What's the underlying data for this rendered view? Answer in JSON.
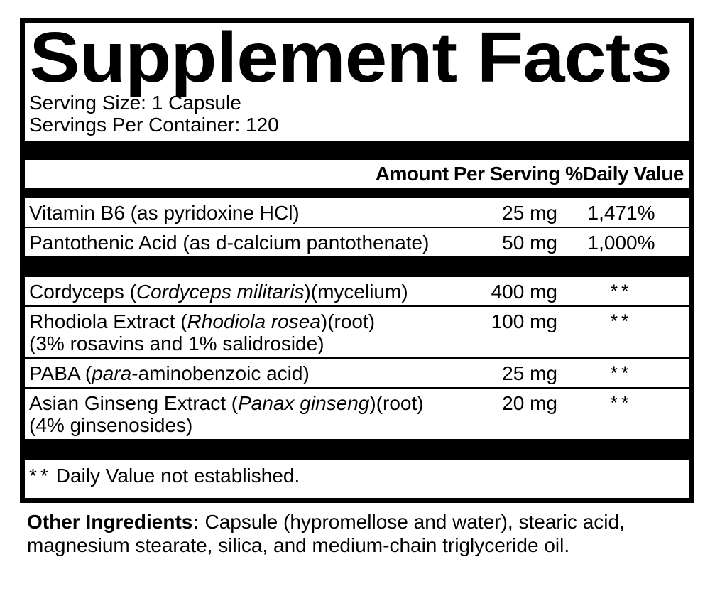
{
  "colors": {
    "ink": "#000000",
    "paper": "#ffffff"
  },
  "panel": {
    "title": "Supplement Facts",
    "serving_size": "Serving Size: 1 Capsule",
    "servings_per_container": "Servings Per Container: 120",
    "column_header": "Amount Per Serving %Daily Value",
    "rows": [
      {
        "group": "a",
        "name": [
          {
            "text": "Vitamin B6 (as pyridoxine HCl)"
          }
        ],
        "amount": "25 mg",
        "dv": "1,471%"
      },
      {
        "group": "a",
        "name": [
          {
            "text": "Pantothenic Acid (as d-calcium pantothenate)"
          }
        ],
        "amount": "50 mg",
        "dv": "1,000%"
      },
      {
        "group": "b",
        "name": [
          {
            "text": "Cordyceps ("
          },
          {
            "text": "Cordyceps militaris",
            "italic": true
          },
          {
            "text": ")(mycelium)"
          }
        ],
        "amount": "400 mg",
        "dv": "**"
      },
      {
        "group": "b",
        "name": [
          {
            "text": "Rhodiola Extract ("
          },
          {
            "text": "Rhodiola rosea",
            "italic": true
          },
          {
            "text": ")(root)"
          }
        ],
        "name2": "(3% rosavins and 1% salidroside)",
        "amount": "100 mg",
        "dv": "**"
      },
      {
        "group": "b",
        "name": [
          {
            "text": "PABA ("
          },
          {
            "text": "para",
            "italic": true
          },
          {
            "text": "-aminobenzoic acid)"
          }
        ],
        "amount": "25 mg",
        "dv": "**"
      },
      {
        "group": "b",
        "name": [
          {
            "text": "Asian Ginseng Extract ("
          },
          {
            "text": "Panax ginseng",
            "italic": true
          },
          {
            "text": ")(root)"
          }
        ],
        "name2": "(4% ginsenosides)",
        "amount": "20 mg",
        "dv": "**"
      }
    ],
    "footnote_symbol": "**",
    "footnote_text": "Daily Value not established."
  },
  "other_ingredients": {
    "label": "Other Ingredients:",
    "text": " Capsule (hypromellose and water), stearic acid, magnesium stearate, silica, and medium-chain triglyceride oil."
  }
}
